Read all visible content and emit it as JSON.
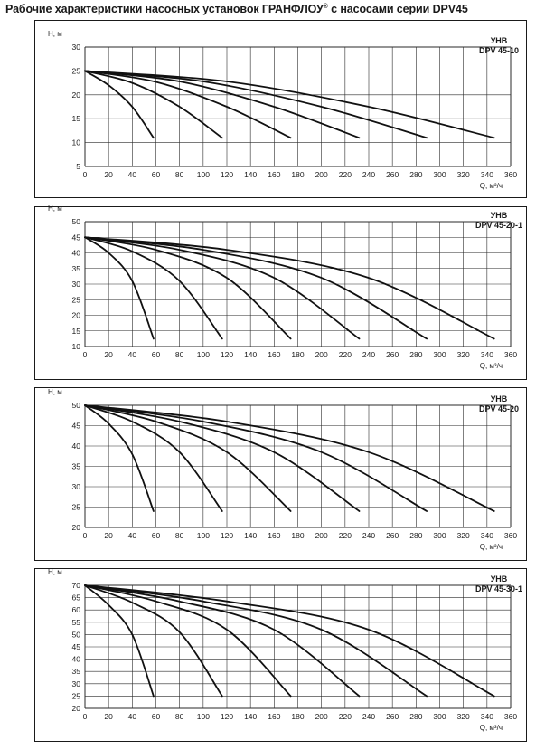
{
  "page": {
    "title_main": "Рабочие характеристики насосных установок  ГРАНФЛОУ",
    "title_reg": "®",
    "title_tail": " с насосами серии DPV45"
  },
  "chart_data": [
    {
      "type": "line",
      "model_line1": "УНВ",
      "model_line2": "DPV 45-10",
      "ylabel": "H, м",
      "xlabel": "Q, м³/ч",
      "xlim": [
        0,
        360
      ],
      "ylim": [
        5,
        30
      ],
      "xticks": [
        0,
        20,
        40,
        60,
        80,
        100,
        120,
        140,
        160,
        180,
        200,
        220,
        240,
        260,
        280,
        300,
        320,
        340,
        360
      ],
      "yticks": [
        5,
        10,
        15,
        20,
        25,
        30
      ],
      "grid": true,
      "series": [
        {
          "x": [
            0,
            20,
            40,
            58
          ],
          "y": [
            25,
            22,
            17.5,
            11
          ]
        },
        {
          "x": [
            0,
            40,
            80,
            116
          ],
          "y": [
            25,
            22.5,
            17.5,
            11
          ]
        },
        {
          "x": [
            0,
            60,
            120,
            174
          ],
          "y": [
            25,
            22.7,
            17.5,
            11
          ]
        },
        {
          "x": [
            0,
            80,
            160,
            232
          ],
          "y": [
            25,
            22.8,
            17.5,
            11
          ]
        },
        {
          "x": [
            0,
            100,
            200,
            289
          ],
          "y": [
            25,
            22.8,
            17.5,
            11
          ]
        },
        {
          "x": [
            0,
            120,
            240,
            346
          ],
          "y": [
            25,
            22.8,
            17.5,
            11
          ]
        }
      ]
    },
    {
      "type": "line",
      "model_line1": "УНВ",
      "model_line2": "DPV 45-20-1",
      "ylabel": "H, м",
      "xlabel": "Q, м³/ч",
      "xlim": [
        0,
        360
      ],
      "ylim": [
        10,
        50
      ],
      "xticks": [
        0,
        20,
        40,
        60,
        80,
        100,
        120,
        140,
        160,
        180,
        200,
        220,
        240,
        260,
        280,
        300,
        320,
        340,
        360
      ],
      "yticks": [
        10,
        15,
        20,
        25,
        30,
        35,
        40,
        45,
        50
      ],
      "grid": true,
      "series": [
        {
          "x": [
            0,
            20,
            40,
            58
          ],
          "y": [
            45,
            40,
            31,
            12.5
          ]
        },
        {
          "x": [
            0,
            40,
            80,
            116
          ],
          "y": [
            45,
            40.5,
            31,
            12.5
          ]
        },
        {
          "x": [
            0,
            60,
            120,
            174
          ],
          "y": [
            45,
            41,
            32,
            12.5
          ]
        },
        {
          "x": [
            0,
            80,
            160,
            232
          ],
          "y": [
            45,
            41,
            32,
            12.5
          ]
        },
        {
          "x": [
            0,
            100,
            200,
            289
          ],
          "y": [
            45,
            41,
            32,
            12.5
          ]
        },
        {
          "x": [
            0,
            120,
            240,
            346
          ],
          "y": [
            45,
            41,
            32,
            12.5
          ]
        }
      ]
    },
    {
      "type": "line",
      "model_line1": "УНВ",
      "model_line2": "DPV 45-20",
      "ylabel": "H, м",
      "xlabel": "Q, м³/ч",
      "xlim": [
        0,
        360
      ],
      "ylim": [
        20,
        50
      ],
      "xticks": [
        0,
        20,
        40,
        60,
        80,
        100,
        120,
        140,
        160,
        180,
        200,
        220,
        240,
        260,
        280,
        300,
        320,
        340,
        360
      ],
      "yticks": [
        20,
        25,
        30,
        35,
        40,
        45,
        50
      ],
      "grid": true,
      "series": [
        {
          "x": [
            0,
            20,
            40,
            58
          ],
          "y": [
            50,
            45.5,
            38,
            24
          ]
        },
        {
          "x": [
            0,
            40,
            80,
            116
          ],
          "y": [
            50,
            46,
            38.5,
            24
          ]
        },
        {
          "x": [
            0,
            60,
            120,
            174
          ],
          "y": [
            50,
            46,
            38.5,
            24
          ]
        },
        {
          "x": [
            0,
            80,
            160,
            232
          ],
          "y": [
            50,
            46,
            38.5,
            24
          ]
        },
        {
          "x": [
            0,
            100,
            200,
            289
          ],
          "y": [
            50,
            46,
            38.5,
            24
          ]
        },
        {
          "x": [
            0,
            120,
            240,
            346
          ],
          "y": [
            50,
            46,
            38.5,
            24
          ]
        }
      ]
    },
    {
      "type": "line",
      "model_line1": "УНВ",
      "model_line2": "DPV 45-30-1",
      "ylabel": "H, м",
      "xlabel": "Q, м³/ч",
      "xlim": [
        0,
        360
      ],
      "ylim": [
        20,
        70
      ],
      "xticks": [
        0,
        20,
        40,
        60,
        80,
        100,
        120,
        140,
        160,
        180,
        200,
        220,
        240,
        260,
        280,
        300,
        320,
        340,
        360
      ],
      "yticks": [
        20,
        25,
        30,
        35,
        40,
        45,
        50,
        55,
        60,
        65,
        70
      ],
      "grid": true,
      "series": [
        {
          "x": [
            0,
            20,
            40,
            58
          ],
          "y": [
            70,
            62,
            50,
            25
          ]
        },
        {
          "x": [
            0,
            40,
            80,
            116
          ],
          "y": [
            70,
            63,
            51,
            25
          ]
        },
        {
          "x": [
            0,
            60,
            120,
            174
          ],
          "y": [
            70,
            63.5,
            52,
            25
          ]
        },
        {
          "x": [
            0,
            80,
            160,
            232
          ],
          "y": [
            70,
            63.5,
            52,
            25
          ]
        },
        {
          "x": [
            0,
            100,
            200,
            289
          ],
          "y": [
            70,
            63.5,
            52,
            25
          ]
        },
        {
          "x": [
            0,
            120,
            240,
            346
          ],
          "y": [
            70,
            63.5,
            52,
            25
          ]
        }
      ]
    }
  ]
}
